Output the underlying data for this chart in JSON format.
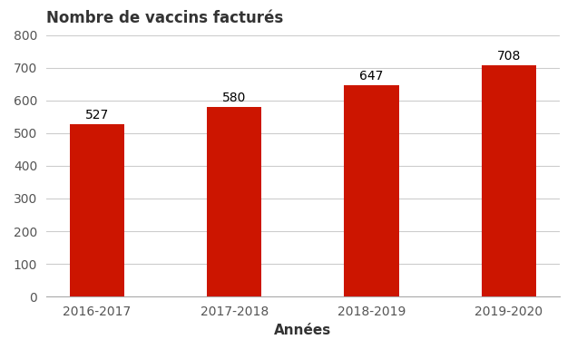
{
  "categories": [
    "2016-2017",
    "2017-2018",
    "2018-2019",
    "2019-2020"
  ],
  "values": [
    527,
    580,
    647,
    708
  ],
  "bar_color": "#CC1500",
  "title": "Nombre de vaccins facturés",
  "xlabel": "Années",
  "ylabel": "",
  "ylim": [
    0,
    800
  ],
  "yticks": [
    0,
    100,
    200,
    300,
    400,
    500,
    600,
    700,
    800
  ],
  "title_fontsize": 12,
  "label_fontsize": 11,
  "tick_fontsize": 10,
  "value_fontsize": 10,
  "background_color": "#ffffff",
  "bar_width": 0.4,
  "grid_color": "#cccccc",
  "grid_linewidth": 0.8
}
